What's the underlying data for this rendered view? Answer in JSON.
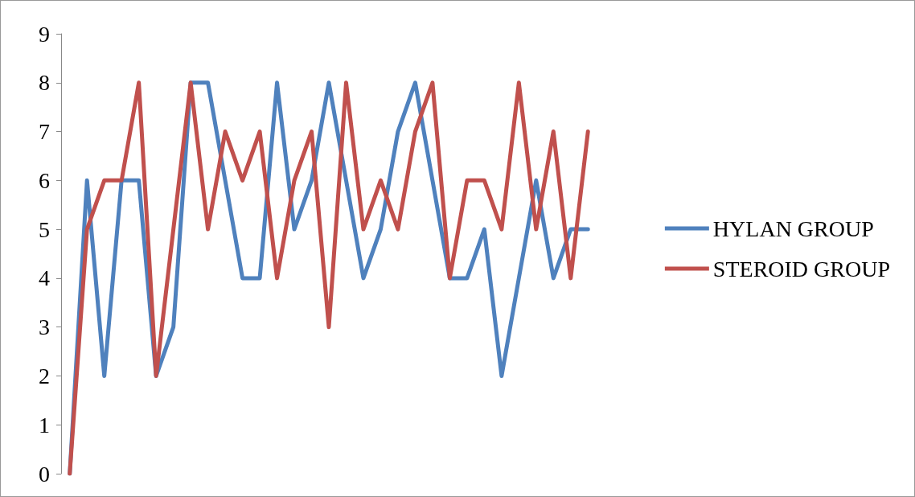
{
  "chart_data": {
    "type": "line",
    "categories": [
      null,
      null,
      null,
      null,
      null,
      null,
      null,
      null,
      null,
      null,
      null,
      null,
      null,
      null,
      null,
      null,
      null,
      null,
      null,
      null,
      null,
      null,
      null,
      null,
      null,
      null,
      null,
      null,
      null,
      null,
      null
    ],
    "series": [
      {
        "name": "HYLAN GROUP",
        "color": "#4f81bd",
        "values": [
          0,
          6,
          2,
          6,
          6,
          2,
          3,
          8,
          8,
          6,
          4,
          4,
          8,
          5,
          6,
          8,
          6,
          4,
          5,
          7,
          8,
          6,
          4,
          4,
          5,
          2,
          4,
          6,
          4,
          5,
          5
        ]
      },
      {
        "name": "STEROID GROUP",
        "color": "#c0504d",
        "values": [
          0,
          5,
          6,
          6,
          8,
          2,
          5,
          8,
          5,
          7,
          6,
          7,
          4,
          6,
          7,
          3,
          8,
          5,
          6,
          5,
          7,
          8,
          4,
          6,
          6,
          5,
          8,
          5,
          7,
          4,
          7
        ]
      }
    ],
    "ylim": [
      0,
      9
    ],
    "yticks": [
      0,
      1,
      2,
      3,
      4,
      5,
      6,
      7,
      8,
      9
    ],
    "grid": false,
    "legend": "right",
    "marker": "none",
    "line_style": "solid"
  }
}
